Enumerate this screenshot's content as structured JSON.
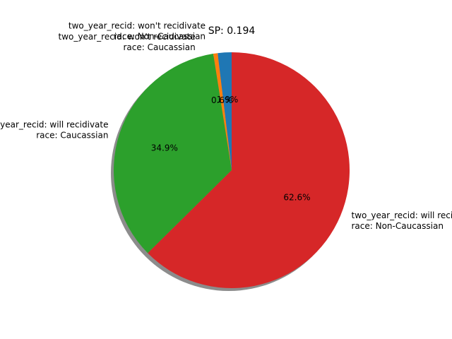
{
  "chart_data": {
    "type": "pie",
    "title": "SP: 0.194",
    "slices": [
      {
        "label_line1": "two_year_recid: won't recidivate",
        "label_line2": "race: Non-Caucassian",
        "percent_label": "1.9%",
        "value": 1.9,
        "color": "#1f77b4"
      },
      {
        "label_line1": "two_year_recid: won't recidivate",
        "label_line2": "race: Caucassian",
        "percent_label": "0.6%",
        "value": 0.6,
        "color": "#ff7f0e"
      },
      {
        "label_line1": "two_year_recid: will recidivate",
        "label_line2": "race: Caucassian",
        "percent_label": "34.9%",
        "value": 34.9,
        "color": "#2ca02c"
      },
      {
        "label_line1": "two_year_recid: will recidivate",
        "label_line2": "race: Non-Caucassian",
        "percent_label": "62.6%",
        "value": 62.6,
        "color": "#d62728"
      }
    ],
    "shadow": true,
    "start_angle_deg": 90,
    "direction": "counterclockwise"
  }
}
